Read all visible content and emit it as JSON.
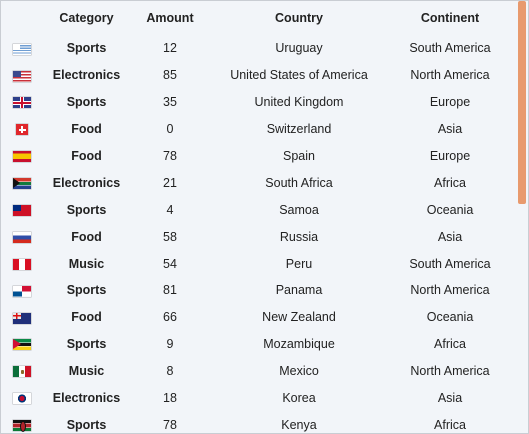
{
  "table": {
    "headers": {
      "flag": "",
      "category": "Category",
      "amount": "Amount",
      "country": "Country",
      "continent": "Continent"
    },
    "rows": [
      {
        "flag_icon": "uruguay-flag-icon",
        "category": "Sports",
        "amount": "12",
        "country": "Uruguay",
        "continent": "South America"
      },
      {
        "flag_icon": "usa-flag-icon",
        "category": "Electronics",
        "amount": "85",
        "country": "United States of America",
        "continent": "North America"
      },
      {
        "flag_icon": "uk-flag-icon",
        "category": "Sports",
        "amount": "35",
        "country": "United Kingdom",
        "continent": "Europe"
      },
      {
        "flag_icon": "switzerland-flag-icon",
        "category": "Food",
        "amount": "0",
        "country": "Switzerland",
        "continent": "Asia"
      },
      {
        "flag_icon": "spain-flag-icon",
        "category": "Food",
        "amount": "78",
        "country": "Spain",
        "continent": "Europe"
      },
      {
        "flag_icon": "south-africa-flag-icon",
        "category": "Electronics",
        "amount": "21",
        "country": "South Africa",
        "continent": "Africa"
      },
      {
        "flag_icon": "samoa-flag-icon",
        "category": "Sports",
        "amount": "4",
        "country": "Samoa",
        "continent": "Oceania"
      },
      {
        "flag_icon": "russia-flag-icon",
        "category": "Food",
        "amount": "58",
        "country": "Russia",
        "continent": "Asia"
      },
      {
        "flag_icon": "peru-flag-icon",
        "category": "Music",
        "amount": "54",
        "country": "Peru",
        "continent": "South America"
      },
      {
        "flag_icon": "panama-flag-icon",
        "category": "Sports",
        "amount": "81",
        "country": "Panama",
        "continent": "North America"
      },
      {
        "flag_icon": "new-zealand-flag-icon",
        "category": "Food",
        "amount": "66",
        "country": "New Zealand",
        "continent": "Oceania"
      },
      {
        "flag_icon": "mozambique-flag-icon",
        "category": "Sports",
        "amount": "9",
        "country": "Mozambique",
        "continent": "Africa"
      },
      {
        "flag_icon": "mexico-flag-icon",
        "category": "Music",
        "amount": "8",
        "country": "Mexico",
        "continent": "North America"
      },
      {
        "flag_icon": "korea-flag-icon",
        "category": "Electronics",
        "amount": "18",
        "country": "Korea",
        "continent": "Asia"
      },
      {
        "flag_icon": "kenya-flag-icon",
        "category": "Sports",
        "amount": "78",
        "country": "Kenya",
        "continent": "Africa"
      }
    ]
  },
  "scrollbar": {
    "thumb_color": "#e89a6e",
    "position_fraction": 0.0,
    "visible_fraction": 0.47
  }
}
